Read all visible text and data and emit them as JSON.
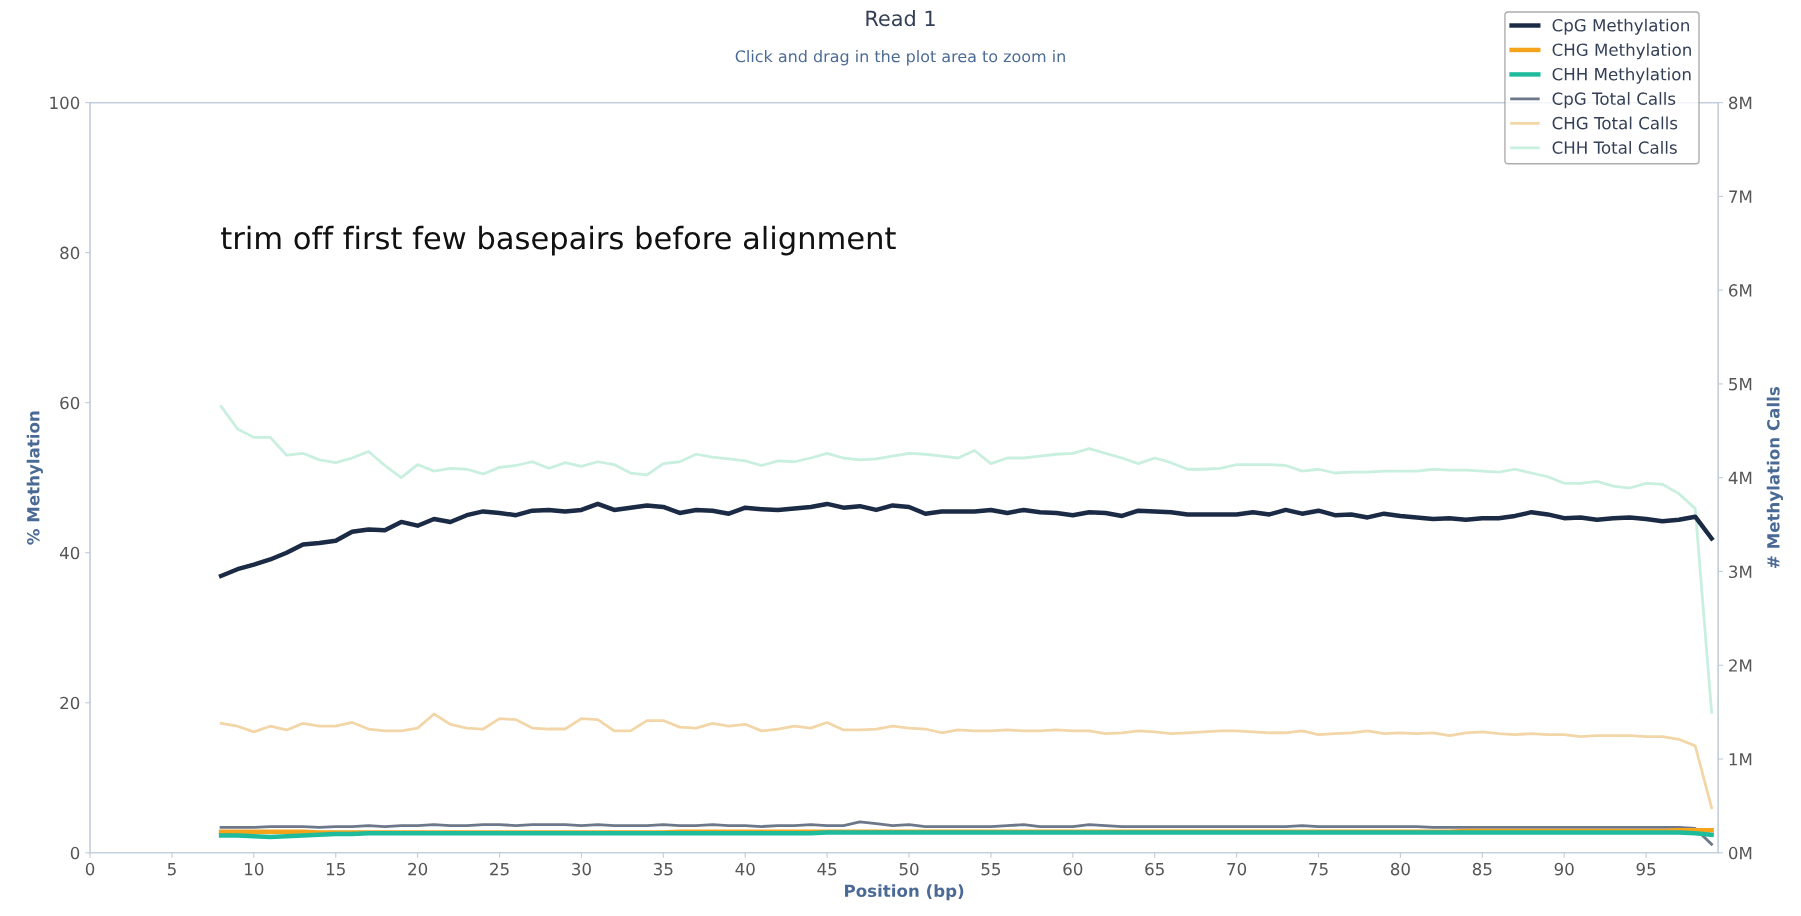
{
  "chart_data": {
    "type": "line",
    "title": "Read 1",
    "subtitle": "Click and drag in the plot area to zoom in",
    "xlabel": "Position (bp)",
    "ylabel": "% Methylation",
    "y2label": "# Methylation Calls",
    "annotations": [
      "trim off first few basepairs before alignment"
    ],
    "x": [
      8,
      9,
      10,
      11,
      12,
      13,
      14,
      15,
      16,
      17,
      18,
      19,
      20,
      21,
      22,
      23,
      24,
      25,
      26,
      27,
      28,
      29,
      30,
      31,
      32,
      33,
      34,
      35,
      36,
      37,
      38,
      39,
      40,
      41,
      42,
      43,
      44,
      45,
      46,
      47,
      48,
      49,
      50,
      51,
      52,
      53,
      54,
      55,
      56,
      57,
      58,
      59,
      60,
      61,
      62,
      63,
      64,
      65,
      66,
      67,
      68,
      69,
      70,
      71,
      72,
      73,
      74,
      75,
      76,
      77,
      78,
      79,
      80,
      81,
      82,
      83,
      84,
      85,
      86,
      87,
      88,
      89,
      90,
      91,
      92,
      93,
      94,
      95,
      96,
      97,
      98,
      99
    ],
    "xlim": [
      0,
      99.4
    ],
    "xticks": [
      0,
      5,
      10,
      15,
      20,
      25,
      30,
      35,
      40,
      45,
      50,
      55,
      60,
      65,
      70,
      75,
      80,
      85,
      90,
      95
    ],
    "ylim": [
      0,
      100
    ],
    "yticks": [
      0,
      20,
      40,
      60,
      80,
      100
    ],
    "y2lim": [
      0,
      8
    ],
    "y2ticks": [
      {
        "value": 0,
        "label": "0M"
      },
      {
        "value": 1,
        "label": "1M"
      },
      {
        "value": 2,
        "label": "2M"
      },
      {
        "value": 3,
        "label": "3M"
      },
      {
        "value": 4,
        "label": "4M"
      },
      {
        "value": 5,
        "label": "5M"
      },
      {
        "value": 6,
        "label": "6M"
      },
      {
        "value": 7,
        "label": "7M"
      },
      {
        "value": 8,
        "label": "8M"
      }
    ],
    "grid": false,
    "legend": "top right",
    "marker": "none",
    "line_style": "solid",
    "series": [
      {
        "name": "CpG Methylation",
        "color": "#1c2b45",
        "values": [
          36.9,
          37.8,
          38.4,
          39.1,
          40.0,
          41.1,
          41.3,
          41.6,
          42.8,
          43.1,
          43.0,
          44.1,
          43.6,
          44.5,
          44.1,
          45.0,
          45.5,
          45.3,
          45.0,
          45.6,
          45.7,
          45.5,
          45.7,
          46.5,
          45.7,
          46.0,
          46.3,
          46.1,
          45.3,
          45.7,
          45.6,
          45.2,
          46.0,
          45.8,
          45.7,
          45.9,
          46.1,
          46.5,
          46.0,
          46.2,
          45.7,
          46.3,
          46.1,
          45.2,
          45.5,
          45.5,
          45.5,
          45.7,
          45.3,
          45.7,
          45.4,
          45.3,
          45.0,
          45.4,
          45.3,
          44.9,
          45.6,
          45.5,
          45.4,
          45.1,
          45.1,
          45.1,
          45.1,
          45.4,
          45.1,
          45.7,
          45.2,
          45.6,
          45.0,
          45.1,
          44.7,
          45.2,
          44.9,
          44.7,
          44.5,
          44.6,
          44.4,
          44.6,
          44.6,
          44.9,
          45.4,
          45.1,
          44.6,
          44.7,
          44.4,
          44.6,
          44.7,
          44.5,
          44.2,
          44.4,
          44.8,
          41.9
        ]
      },
      {
        "name": "CHG Methylation",
        "color": "#f5a31a",
        "values": [
          2.8,
          2.8,
          2.8,
          2.8,
          2.8,
          2.8,
          2.7,
          2.7,
          2.7,
          2.7,
          2.7,
          2.7,
          2.7,
          2.7,
          2.7,
          2.7,
          2.7,
          2.7,
          2.7,
          2.7,
          2.7,
          2.7,
          2.7,
          2.7,
          2.7,
          2.7,
          2.7,
          2.7,
          2.8,
          2.8,
          2.8,
          2.8,
          2.8,
          2.8,
          2.8,
          2.8,
          2.8,
          2.8,
          2.8,
          2.8,
          2.8,
          2.8,
          2.8,
          2.8,
          2.8,
          2.8,
          2.8,
          2.8,
          2.8,
          2.8,
          2.8,
          2.8,
          2.8,
          2.8,
          2.8,
          2.8,
          2.8,
          2.8,
          2.8,
          2.8,
          2.8,
          2.8,
          2.8,
          2.8,
          2.8,
          2.8,
          2.8,
          2.8,
          2.8,
          2.8,
          2.8,
          2.8,
          2.8,
          2.8,
          2.8,
          2.8,
          2.9,
          2.9,
          2.9,
          2.9,
          2.9,
          2.9,
          2.9,
          2.9,
          2.9,
          2.9,
          2.9,
          2.9,
          2.9,
          3.0,
          3.0,
          3.0
        ]
      },
      {
        "name": "CHH Methylation",
        "color": "#1ebc9c",
        "values": [
          2.3,
          2.3,
          2.2,
          2.1,
          2.2,
          2.3,
          2.4,
          2.5,
          2.5,
          2.6,
          2.6,
          2.6,
          2.6,
          2.6,
          2.6,
          2.6,
          2.6,
          2.6,
          2.6,
          2.6,
          2.6,
          2.6,
          2.6,
          2.6,
          2.6,
          2.6,
          2.6,
          2.6,
          2.6,
          2.6,
          2.6,
          2.6,
          2.6,
          2.6,
          2.6,
          2.6,
          2.6,
          2.7,
          2.7,
          2.7,
          2.7,
          2.7,
          2.7,
          2.7,
          2.7,
          2.7,
          2.7,
          2.7,
          2.7,
          2.7,
          2.7,
          2.7,
          2.7,
          2.7,
          2.7,
          2.7,
          2.7,
          2.7,
          2.7,
          2.7,
          2.7,
          2.7,
          2.7,
          2.7,
          2.7,
          2.7,
          2.7,
          2.7,
          2.7,
          2.7,
          2.7,
          2.7,
          2.7,
          2.7,
          2.7,
          2.7,
          2.7,
          2.7,
          2.7,
          2.7,
          2.7,
          2.7,
          2.7,
          2.7,
          2.7,
          2.7,
          2.7,
          2.7,
          2.7,
          2.7,
          2.6,
          2.4
        ]
      },
      {
        "name": "CpG Total Calls",
        "color": "#6c7789",
        "axis": "y2",
        "values": [
          0.27,
          0.27,
          0.27,
          0.28,
          0.28,
          0.28,
          0.27,
          0.28,
          0.28,
          0.29,
          0.28,
          0.29,
          0.29,
          0.3,
          0.29,
          0.29,
          0.3,
          0.3,
          0.29,
          0.3,
          0.3,
          0.3,
          0.29,
          0.3,
          0.29,
          0.29,
          0.29,
          0.3,
          0.29,
          0.29,
          0.3,
          0.29,
          0.29,
          0.28,
          0.29,
          0.29,
          0.3,
          0.29,
          0.29,
          0.33,
          0.31,
          0.29,
          0.3,
          0.28,
          0.28,
          0.28,
          0.28,
          0.28,
          0.29,
          0.3,
          0.28,
          0.28,
          0.28,
          0.3,
          0.29,
          0.28,
          0.28,
          0.28,
          0.28,
          0.28,
          0.28,
          0.28,
          0.28,
          0.28,
          0.28,
          0.28,
          0.29,
          0.28,
          0.28,
          0.28,
          0.28,
          0.28,
          0.28,
          0.28,
          0.27,
          0.27,
          0.27,
          0.27,
          0.27,
          0.27,
          0.27,
          0.27,
          0.27,
          0.27,
          0.27,
          0.27,
          0.27,
          0.27,
          0.27,
          0.27,
          0.26,
          0.09
        ]
      },
      {
        "name": "CHG Total Calls",
        "color": "#f3d6a8",
        "axis": "y2",
        "values": [
          1.38,
          1.35,
          1.29,
          1.35,
          1.31,
          1.38,
          1.35,
          1.35,
          1.39,
          1.32,
          1.3,
          1.3,
          1.33,
          1.48,
          1.37,
          1.33,
          1.32,
          1.43,
          1.42,
          1.33,
          1.32,
          1.32,
          1.43,
          1.42,
          1.3,
          1.3,
          1.41,
          1.41,
          1.34,
          1.33,
          1.38,
          1.35,
          1.37,
          1.3,
          1.32,
          1.35,
          1.33,
          1.39,
          1.31,
          1.31,
          1.32,
          1.35,
          1.33,
          1.32,
          1.28,
          1.31,
          1.3,
          1.3,
          1.31,
          1.3,
          1.3,
          1.31,
          1.3,
          1.3,
          1.27,
          1.28,
          1.3,
          1.29,
          1.27,
          1.28,
          1.29,
          1.3,
          1.3,
          1.29,
          1.28,
          1.28,
          1.3,
          1.26,
          1.27,
          1.28,
          1.3,
          1.27,
          1.28,
          1.27,
          1.28,
          1.25,
          1.28,
          1.29,
          1.27,
          1.26,
          1.27,
          1.26,
          1.26,
          1.24,
          1.25,
          1.25,
          1.25,
          1.24,
          1.24,
          1.21,
          1.14,
          0.48
        ]
      },
      {
        "name": "CHH Total Calls",
        "color": "#c9efdf",
        "axis": "y2",
        "values": [
          4.76,
          4.52,
          4.43,
          4.43,
          4.24,
          4.26,
          4.19,
          4.16,
          4.21,
          4.28,
          4.13,
          4.0,
          4.14,
          4.07,
          4.1,
          4.09,
          4.04,
          4.11,
          4.13,
          4.17,
          4.1,
          4.16,
          4.12,
          4.17,
          4.14,
          4.05,
          4.03,
          4.15,
          4.17,
          4.25,
          4.22,
          4.2,
          4.18,
          4.13,
          4.18,
          4.17,
          4.21,
          4.26,
          4.21,
          4.19,
          4.2,
          4.23,
          4.26,
          4.25,
          4.23,
          4.21,
          4.29,
          4.15,
          4.21,
          4.21,
          4.23,
          4.25,
          4.26,
          4.31,
          4.26,
          4.21,
          4.15,
          4.21,
          4.16,
          4.09,
          4.09,
          4.1,
          4.14,
          4.14,
          4.14,
          4.13,
          4.07,
          4.09,
          4.05,
          4.06,
          4.06,
          4.07,
          4.07,
          4.07,
          4.09,
          4.08,
          4.08,
          4.07,
          4.06,
          4.09,
          4.05,
          4.01,
          3.94,
          3.94,
          3.96,
          3.91,
          3.89,
          3.94,
          3.93,
          3.83,
          3.67,
          1.5
        ]
      }
    ]
  }
}
